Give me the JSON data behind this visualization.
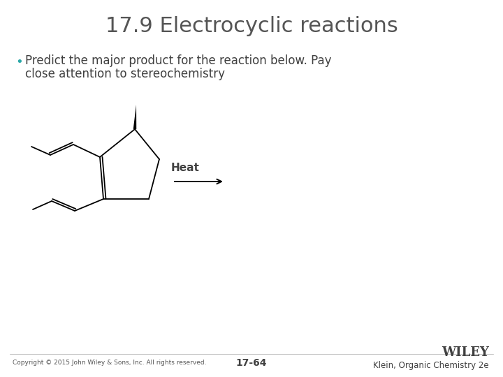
{
  "title": "17.9 Electrocyclic reactions",
  "title_color": "#555555",
  "title_fontsize": 22,
  "bullet_text_line1": "Predict the major product for the reaction below. Pay",
  "bullet_text_line2": "close attention to stereochemistry",
  "bullet_color": "#2aa8a8",
  "text_color": "#404040",
  "text_fontsize": 12,
  "heat_label": "Heat",
  "heat_fontsize": 11,
  "copyright_text": "Copyright © 2015 John Wiley & Sons, Inc. All rights reserved.",
  "page_number": "17-64",
  "right_text_top": "WILEY",
  "right_text_bottom": "Klein, Organic Chemistry 2e",
  "bg_color": "#ffffff",
  "line_color": "#000000",
  "footer_color": "#555555"
}
